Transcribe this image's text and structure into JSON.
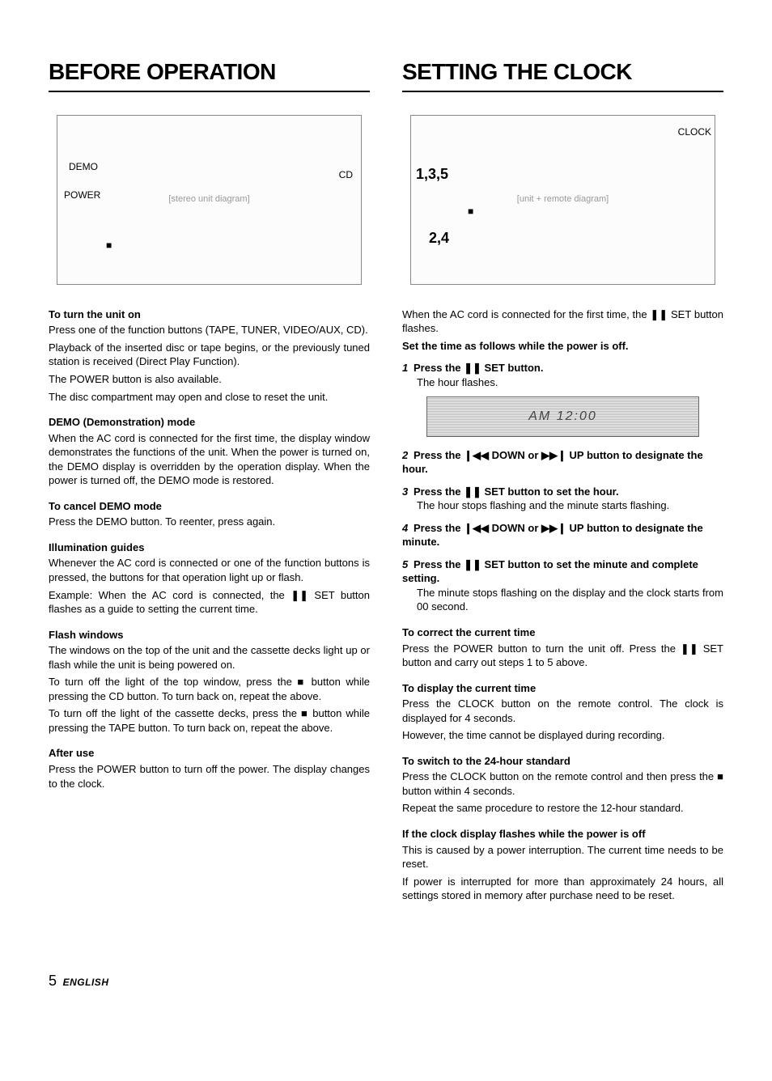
{
  "page": {
    "number": "5",
    "language": "ENGLISH"
  },
  "left": {
    "title": "BEFORE OPERATION",
    "diagram_labels": {
      "demo": "DEMO",
      "power": "POWER",
      "cd": "CD",
      "stop": "■"
    },
    "sections": [
      {
        "heading": "To turn the unit on",
        "paras": [
          "Press one of the function buttons (TAPE, TUNER, VIDEO/AUX, CD).",
          "Playback of the inserted disc or tape begins, or the previously tuned station is received (Direct Play Function).",
          "The POWER button is also available.",
          "The disc compartment may open and close to reset the unit."
        ]
      },
      {
        "heading": "DEMO (Demonstration) mode",
        "paras": [
          "When the AC cord is connected for the first time, the display window demonstrates the functions of the unit. When the power is turned on, the DEMO display is overridden by the operation display. When the power is turned off, the DEMO mode is restored."
        ]
      },
      {
        "heading": "To cancel DEMO mode",
        "paras": [
          "Press the DEMO button. To reenter, press again."
        ]
      },
      {
        "heading": "Illumination guides",
        "paras": [
          "Whenever the AC cord is connected or one of the function buttons is pressed, the buttons for that operation light up or flash.",
          "Example: When the AC cord is connected, the ❚❚ SET button flashes as a guide to setting the current time."
        ]
      },
      {
        "heading": "Flash windows",
        "paras": [
          "The windows on the top of the unit and the cassette decks light up or flash while the unit is being powered on.",
          "To turn off the light of the top window, press the ■ button while pressing the CD button. To turn back on, repeat the above.",
          "To turn off the light of the cassette decks, press the ■ button while pressing the TAPE button. To turn back on, repeat the above."
        ]
      },
      {
        "heading": "After use",
        "paras": [
          "Press the POWER button to turn off the power. The display changes to the clock."
        ]
      }
    ]
  },
  "right": {
    "title": "SETTING THE CLOCK",
    "diagram_labels": {
      "steps_a": "1,3,5",
      "steps_b": "2,4",
      "stop": "■",
      "clock": "CLOCK"
    },
    "intro": [
      "When the AC cord is connected for the first time, the ❚❚ SET button flashes."
    ],
    "intro_bold": "Set the time as follows while the power is off.",
    "steps": [
      {
        "num": "1",
        "head": "Press the ❚❚ SET button.",
        "body": [
          "The hour flashes."
        ],
        "display_after": true
      },
      {
        "num": "2",
        "head": "Press the ❙◀◀ DOWN or ▶▶❙ UP button to designate the hour.",
        "body": []
      },
      {
        "num": "3",
        "head": "Press the ❚❚ SET button to set the hour.",
        "body": [
          "The hour stops flashing and the minute starts flashing."
        ]
      },
      {
        "num": "4",
        "head": "Press the ❙◀◀ DOWN or ▶▶❙ UP button to designate the minute.",
        "body": []
      },
      {
        "num": "5",
        "head": "Press the ❚❚ SET button to set the minute and complete setting.",
        "body": [
          "The minute stops flashing on the display and the clock starts from 00 second."
        ]
      }
    ],
    "sections": [
      {
        "heading": "To correct the current time",
        "paras": [
          "Press the POWER button to turn the unit off. Press the ❚❚ SET button and carry out steps 1 to 5 above."
        ]
      },
      {
        "heading": "To display the current time",
        "paras": [
          "Press the CLOCK button on the remote control. The clock is displayed for 4 seconds.",
          "However, the time cannot be displayed during recording."
        ]
      },
      {
        "heading": "To switch to the 24-hour standard",
        "paras": [
          "Press the CLOCK button on the remote control and then press the ■ button within 4 seconds.",
          "Repeat the same procedure to restore the 12-hour standard."
        ]
      },
      {
        "heading": "If the clock display flashes while the power is off",
        "paras": [
          "This is caused by a power interruption. The current time needs to be reset.",
          "If power is interrupted for more than approximately 24 hours, all settings stored in memory after purchase need to be reset."
        ]
      }
    ]
  }
}
